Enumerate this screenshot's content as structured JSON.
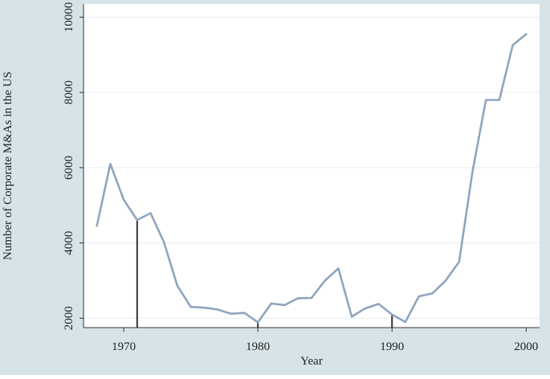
{
  "chart_data": {
    "type": "line",
    "title": "",
    "xlabel": "Year",
    "ylabel": "Number of Corporate M&As in the US",
    "xlim": [
      1967,
      2001
    ],
    "ylim": [
      1750,
      10350
    ],
    "x_ticks": [
      1970,
      1980,
      1990,
      2000
    ],
    "y_ticks": [
      2000,
      4000,
      6000,
      8000,
      10000
    ],
    "grid": true,
    "legend": "none",
    "colors": {
      "outer_background": "#d6e4e8",
      "plot_background": "#ffffff",
      "line": "#8fa5bf",
      "gridline": "#e6eef1",
      "marker_line": "#333333"
    },
    "series": [
      {
        "x": [
          1968,
          1969,
          1970,
          1971,
          1972,
          1973,
          1974,
          1975,
          1976,
          1977,
          1978,
          1979,
          1980,
          1981,
          1982,
          1983,
          1984,
          1985,
          1986,
          1987,
          1988,
          1989,
          1990,
          1991,
          1992,
          1993,
          1994,
          1995,
          1996,
          1997,
          1998,
          1999,
          2000
        ],
        "values": [
          4460,
          6100,
          5150,
          4610,
          4790,
          4020,
          2860,
          2300,
          2280,
          2230,
          2120,
          2140,
          1890,
          2390,
          2350,
          2530,
          2540,
          3000,
          3320,
          2040,
          2260,
          2380,
          2100,
          1900,
          2580,
          2660,
          3000,
          3500,
          5900,
          7800,
          7800,
          9260,
          9550
        ]
      }
    ],
    "vertical_markers": [
      1971,
      1980,
      1990
    ]
  }
}
